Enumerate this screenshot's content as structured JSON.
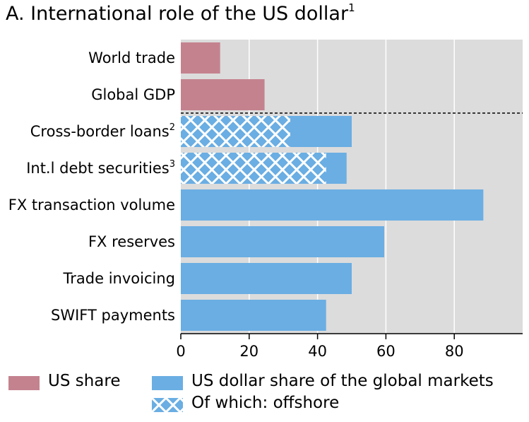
{
  "chart_data": {
    "type": "bar",
    "orientation": "horizontal",
    "title": "A. International role of the US dollar",
    "title_sup": "1",
    "categories": [
      {
        "label": "World trade",
        "sup": ""
      },
      {
        "label": "Global GDP",
        "sup": ""
      },
      {
        "label": "Cross-border loans",
        "sup": "2"
      },
      {
        "label": "Int.l debt securities",
        "sup": "3"
      },
      {
        "label": "FX transaction volume",
        "sup": ""
      },
      {
        "label": "FX reserves",
        "sup": ""
      },
      {
        "label": "Trade invoicing",
        "sup": ""
      },
      {
        "label": "SWIFT payments",
        "sup": ""
      }
    ],
    "series": [
      {
        "name": "US share",
        "color": "#c4828f",
        "values": [
          11.5,
          24.5,
          null,
          null,
          null,
          null,
          null,
          null
        ]
      },
      {
        "name": "US dollar share of the global markets",
        "color": "#6aaee3",
        "values": [
          null,
          null,
          50,
          48.5,
          88.5,
          59.5,
          50,
          42.5
        ]
      },
      {
        "name": "Of which: offshore",
        "color": "#6aaee3",
        "pattern": "crosshatch",
        "values": [
          null,
          null,
          32,
          42.5,
          null,
          null,
          null,
          null
        ]
      }
    ],
    "xlim": [
      0,
      100
    ],
    "xticks": [
      0,
      20,
      40,
      60,
      80
    ],
    "grid": true,
    "separator_after_category": 1,
    "legend_position": "bottom"
  }
}
